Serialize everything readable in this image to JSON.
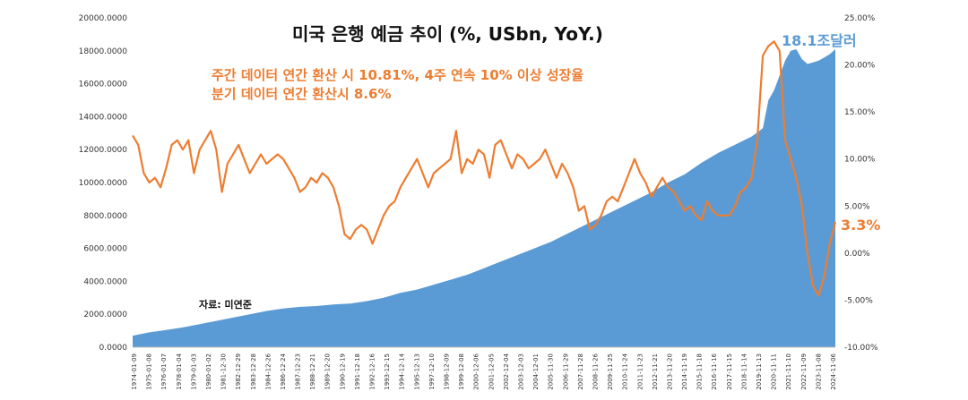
{
  "chart_data": {
    "type": "area-line combo",
    "title": "미국 은행 예금 추이 (%, USbn, YoY.)",
    "annotations": [
      "주간 데이터 연간 환산 시 10.81%, 4주 연속 10% 이상 성장율",
      "분기 데이터 연간 환산시 8.6%"
    ],
    "source": "자료: 미연준",
    "colors": {
      "area": "#5B9BD5",
      "line": "#ED7D31",
      "area_label": "#5B9BD5",
      "line_label": "#ED7D31"
    },
    "y_left": {
      "ylim": [
        0,
        20000
      ],
      "ticks": [
        "0.0000",
        "2000.0000",
        "4000.0000",
        "6000.0000",
        "8000.0000",
        "10000.0000",
        "12000.0000",
        "14000.0000",
        "16000.0000",
        "18000.0000",
        "20000.0000"
      ]
    },
    "y_right": {
      "ylim": [
        -10,
        25
      ],
      "ticks": [
        "-10.00%",
        "-5.00%",
        "0.00%",
        "5.00%",
        "10.00%",
        "15.00%",
        "20.00%",
        "25.00%"
      ]
    },
    "x_ticks": [
      "1974-01-09",
      "1975-01-08",
      "1976-01-07",
      "1978-01-04",
      "1979-01-03",
      "1980-01-02",
      "1981-12-30",
      "1982-12-29",
      "1983-12-28",
      "1984-12-26",
      "1986-12-24",
      "1987-12-23",
      "1988-12-21",
      "1989-12-20",
      "1990-12-19",
      "1991-12-18",
      "1992-12-16",
      "1993-12-15",
      "1994-12-14",
      "1995-12-13",
      "1997-12-10",
      "1998-12-09",
      "1999-12-08",
      "2000-12-06",
      "2001-12-05",
      "2002-12-04",
      "2003-12-03",
      "2004-12-01",
      "2005-11-30",
      "2006-11-29",
      "2007-11-28",
      "2008-11-26",
      "2009-11-25",
      "2010-11-24",
      "2011-11-23",
      "2012-11-21",
      "2013-11-20",
      "2014-11-19",
      "2015-11-18",
      "2016-11-16",
      "2017-11-15",
      "2018-11-14",
      "2019-11-13",
      "2020-11-11",
      "2021-11-10",
      "2022-11-09",
      "2023-11-08",
      "2024-11-06"
    ],
    "series": [
      {
        "name": "deposits",
        "type": "area",
        "axis": "left",
        "end_label": "18.1조달러",
        "points": [
          [
            0,
            700
          ],
          [
            3,
            900
          ],
          [
            6,
            1050
          ],
          [
            9,
            1200
          ],
          [
            12,
            1400
          ],
          [
            15,
            1600
          ],
          [
            18,
            1800
          ],
          [
            21,
            2000
          ],
          [
            24,
            2200
          ],
          [
            27,
            2350
          ],
          [
            30,
            2450
          ],
          [
            33,
            2500
          ],
          [
            36,
            2600
          ],
          [
            39,
            2650
          ],
          [
            42,
            2800
          ],
          [
            45,
            3000
          ],
          [
            48,
            3300
          ],
          [
            51,
            3500
          ],
          [
            54,
            3800
          ],
          [
            57,
            4100
          ],
          [
            60,
            4400
          ],
          [
            63,
            4800
          ],
          [
            66,
            5200
          ],
          [
            69,
            5600
          ],
          [
            72,
            6000
          ],
          [
            75,
            6400
          ],
          [
            78,
            6900
          ],
          [
            81,
            7400
          ],
          [
            84,
            7900
          ],
          [
            87,
            8400
          ],
          [
            90,
            8900
          ],
          [
            93,
            9400
          ],
          [
            96,
            10000
          ],
          [
            99,
            10500
          ],
          [
            102,
            11200
          ],
          [
            105,
            11800
          ],
          [
            108,
            12300
          ],
          [
            111,
            12800
          ],
          [
            113,
            13300
          ],
          [
            114,
            15000
          ],
          [
            115,
            15600
          ],
          [
            116,
            16500
          ],
          [
            117,
            17400
          ],
          [
            118,
            18000
          ],
          [
            119,
            18100
          ],
          [
            120,
            17500
          ],
          [
            121,
            17200
          ],
          [
            122,
            17300
          ],
          [
            123,
            17400
          ],
          [
            124,
            17600
          ],
          [
            125,
            17800
          ],
          [
            126,
            18100
          ]
        ]
      },
      {
        "name": "yoy",
        "type": "line",
        "axis": "right",
        "end_label": "3.3%",
        "points": [
          [
            0,
            12.5
          ],
          [
            1,
            11.5
          ],
          [
            2,
            8.5
          ],
          [
            3,
            7.5
          ],
          [
            4,
            8.0
          ],
          [
            5,
            7.0
          ],
          [
            6,
            9.0
          ],
          [
            7,
            11.5
          ],
          [
            8,
            12.0
          ],
          [
            9,
            11.0
          ],
          [
            10,
            12.0
          ],
          [
            11,
            8.5
          ],
          [
            12,
            11.0
          ],
          [
            13,
            12.0
          ],
          [
            14,
            13.0
          ],
          [
            15,
            11.0
          ],
          [
            16,
            6.5
          ],
          [
            17,
            9.5
          ],
          [
            18,
            10.5
          ],
          [
            19,
            11.5
          ],
          [
            20,
            10.0
          ],
          [
            21,
            8.5
          ],
          [
            22,
            9.5
          ],
          [
            23,
            10.5
          ],
          [
            24,
            9.5
          ],
          [
            25,
            10.0
          ],
          [
            26,
            10.5
          ],
          [
            27,
            10.0
          ],
          [
            28,
            9.0
          ],
          [
            29,
            8.0
          ],
          [
            30,
            6.5
          ],
          [
            31,
            7.0
          ],
          [
            32,
            8.0
          ],
          [
            33,
            7.5
          ],
          [
            34,
            8.5
          ],
          [
            35,
            8.0
          ],
          [
            36,
            7.0
          ],
          [
            37,
            5.0
          ],
          [
            38,
            2.0
          ],
          [
            39,
            1.5
          ],
          [
            40,
            2.5
          ],
          [
            41,
            3.0
          ],
          [
            42,
            2.5
          ],
          [
            43,
            1.0
          ],
          [
            44,
            2.5
          ],
          [
            45,
            4.0
          ],
          [
            46,
            5.0
          ],
          [
            47,
            5.5
          ],
          [
            48,
            7.0
          ],
          [
            49,
            8.0
          ],
          [
            50,
            9.0
          ],
          [
            51,
            10.0
          ],
          [
            52,
            8.5
          ],
          [
            53,
            7.0
          ],
          [
            54,
            8.5
          ],
          [
            55,
            9.0
          ],
          [
            56,
            9.5
          ],
          [
            57,
            10.0
          ],
          [
            58,
            13.0
          ],
          [
            59,
            8.5
          ],
          [
            60,
            10.0
          ],
          [
            61,
            9.5
          ],
          [
            62,
            11.0
          ],
          [
            63,
            10.5
          ],
          [
            64,
            8.0
          ],
          [
            65,
            11.5
          ],
          [
            66,
            12.0
          ],
          [
            67,
            10.5
          ],
          [
            68,
            9.0
          ],
          [
            69,
            10.5
          ],
          [
            70,
            10.0
          ],
          [
            71,
            9.0
          ],
          [
            72,
            9.5
          ],
          [
            73,
            10.0
          ],
          [
            74,
            11.0
          ],
          [
            75,
            9.5
          ],
          [
            76,
            8.0
          ],
          [
            77,
            9.5
          ],
          [
            78,
            8.5
          ],
          [
            79,
            7.0
          ],
          [
            80,
            4.5
          ],
          [
            81,
            5.0
          ],
          [
            82,
            2.5
          ],
          [
            83,
            3.0
          ],
          [
            84,
            4.0
          ],
          [
            85,
            5.5
          ],
          [
            86,
            6.0
          ],
          [
            87,
            5.5
          ],
          [
            88,
            7.0
          ],
          [
            89,
            8.5
          ],
          [
            90,
            10.0
          ],
          [
            91,
            8.5
          ],
          [
            92,
            7.5
          ],
          [
            93,
            6.0
          ],
          [
            94,
            7.0
          ],
          [
            95,
            8.0
          ],
          [
            96,
            7.0
          ],
          [
            97,
            6.5
          ],
          [
            98,
            5.5
          ],
          [
            99,
            4.5
          ],
          [
            100,
            5.0
          ],
          [
            101,
            4.0
          ],
          [
            102,
            3.5
          ],
          [
            103,
            5.5
          ],
          [
            104,
            4.5
          ],
          [
            105,
            4.0
          ],
          [
            106,
            4.0
          ],
          [
            107,
            4.0
          ],
          [
            108,
            5.0
          ],
          [
            109,
            6.5
          ],
          [
            110,
            7.0
          ],
          [
            111,
            8.0
          ],
          [
            112,
            12.0
          ],
          [
            113,
            21.0
          ],
          [
            114,
            22.0
          ],
          [
            115,
            22.5
          ],
          [
            116,
            21.5
          ],
          [
            117,
            12.0
          ],
          [
            118,
            10.0
          ],
          [
            119,
            8.0
          ],
          [
            120,
            5.0
          ],
          [
            121,
            0.0
          ],
          [
            122,
            -3.5
          ],
          [
            123,
            -4.5
          ],
          [
            124,
            -2.5
          ],
          [
            125,
            1.0
          ],
          [
            126,
            3.3
          ]
        ]
      }
    ]
  }
}
